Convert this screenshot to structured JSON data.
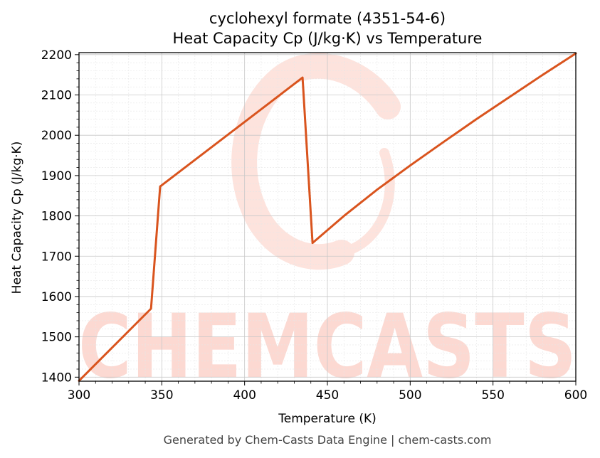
{
  "chart_data": {
    "type": "line",
    "title_line1": "cyclohexyl formate (4351-54-6)",
    "title_line2": "Heat Capacity Cp (J/kg·K) vs Temperature",
    "xlabel": "Temperature (K)",
    "ylabel": "Heat Capacity Cp (J/kg·K)",
    "xlim": [
      300,
      600
    ],
    "ylim": [
      1390,
      2205
    ],
    "x_ticks": [
      300,
      350,
      400,
      450,
      500,
      550,
      600
    ],
    "y_ticks": [
      1400,
      1500,
      1600,
      1700,
      1800,
      1900,
      2000,
      2100,
      2200
    ],
    "grid": true,
    "line_color": "#d9541e",
    "series": [
      {
        "x": [
          300,
          343.5,
          349,
          435,
          441,
          460,
          480,
          500,
          520,
          540,
          560,
          580,
          600
        ],
        "y": [
          1391,
          1570,
          1873,
          2143,
          1733,
          1800,
          1865,
          1925,
          1983,
          2040,
          2095,
          2150,
          2203
        ]
      }
    ]
  },
  "watermark": {
    "text": "CHEMCASTS",
    "color": "#fcd9d2"
  },
  "footer": "Generated by Chem-Casts Data Engine | chem-casts.com"
}
